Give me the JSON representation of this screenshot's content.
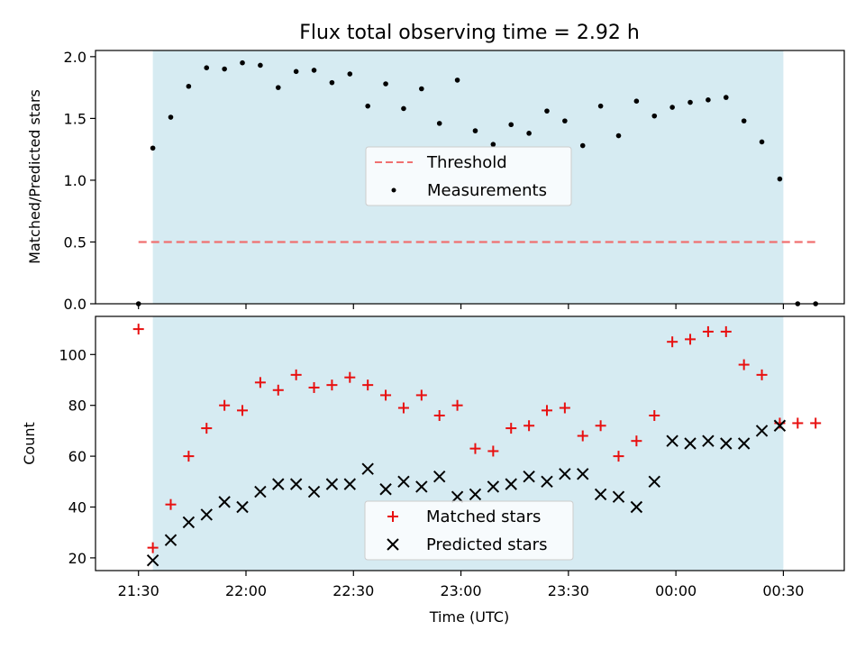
{
  "chart_data": [
    {
      "type": "scatter",
      "title": "Flux total observing time = 2.92 h",
      "xlabel": "",
      "ylabel": "Matched/Predicted stars",
      "ylim": [
        0,
        2.05
      ],
      "yticks": [
        "0.0",
        "0.5",
        "1.0",
        "1.5",
        "2.0"
      ],
      "observing_window": [
        "21:34",
        "00:30"
      ],
      "threshold": {
        "name": "Threshold",
        "value": 0.5,
        "color": "#f07070",
        "from": "21:30",
        "to": "00:39"
      },
      "series": [
        {
          "name": "Measurements",
          "marker": "dot",
          "color": "#000000",
          "x": [
            "21:30",
            "21:34",
            "21:39",
            "21:44",
            "21:49",
            "21:54",
            "21:59",
            "22:04",
            "22:09",
            "22:14",
            "22:19",
            "22:24",
            "22:29",
            "22:34",
            "22:39",
            "22:44",
            "22:49",
            "22:54",
            "22:59",
            "23:04",
            "23:09",
            "23:14",
            "23:19",
            "23:24",
            "23:29",
            "23:34",
            "23:39",
            "23:44",
            "23:49",
            "23:54",
            "23:59",
            "00:04",
            "00:09",
            "00:14",
            "00:19",
            "00:24",
            "00:29",
            "00:34",
            "00:39"
          ],
          "values": [
            0.0,
            1.26,
            1.51,
            1.76,
            1.91,
            1.9,
            1.95,
            1.93,
            1.75,
            1.88,
            1.89,
            1.79,
            1.86,
            1.6,
            1.78,
            1.58,
            1.74,
            1.46,
            1.81,
            1.4,
            1.29,
            1.45,
            1.38,
            1.56,
            1.48,
            1.28,
            1.6,
            1.36,
            1.64,
            1.52,
            1.59,
            1.63,
            1.65,
            1.67,
            1.48,
            1.31,
            1.01,
            0.0,
            0.0
          ]
        }
      ],
      "legend": "center"
    },
    {
      "type": "scatter",
      "title": "",
      "xlabel": "Time (UTC)",
      "ylabel": "Count",
      "ylim": [
        15,
        115
      ],
      "yticks": [
        "20",
        "40",
        "60",
        "80",
        "100"
      ],
      "xticks": [
        "21:30",
        "22:00",
        "22:30",
        "23:00",
        "23:30",
        "00:00",
        "00:30"
      ],
      "observing_window": [
        "21:34",
        "00:30"
      ],
      "series": [
        {
          "name": "Matched stars",
          "marker": "plus",
          "color": "#e81010",
          "x": [
            "21:30",
            "21:34",
            "21:39",
            "21:44",
            "21:49",
            "21:54",
            "21:59",
            "22:04",
            "22:09",
            "22:14",
            "22:19",
            "22:24",
            "22:29",
            "22:34",
            "22:39",
            "22:44",
            "22:49",
            "22:54",
            "22:59",
            "23:04",
            "23:09",
            "23:14",
            "23:19",
            "23:24",
            "23:29",
            "23:34",
            "23:39",
            "23:44",
            "23:49",
            "23:54",
            "23:59",
            "00:04",
            "00:09",
            "00:14",
            "00:19",
            "00:24",
            "00:29",
            "00:34",
            "00:39"
          ],
          "values": [
            110,
            24,
            41,
            60,
            71,
            80,
            78,
            89,
            86,
            92,
            87,
            88,
            91,
            88,
            84,
            79,
            84,
            76,
            80,
            63,
            62,
            71,
            72,
            78,
            79,
            68,
            72,
            60,
            66,
            76,
            105,
            106,
            109,
            109,
            96,
            92,
            73,
            73,
            73
          ]
        },
        {
          "name": "Predicted stars",
          "marker": "x",
          "color": "#000000",
          "x": [
            "21:34",
            "21:39",
            "21:44",
            "21:49",
            "21:54",
            "21:59",
            "22:04",
            "22:09",
            "22:14",
            "22:19",
            "22:24",
            "22:29",
            "22:34",
            "22:39",
            "22:44",
            "22:49",
            "22:54",
            "22:59",
            "23:04",
            "23:09",
            "23:14",
            "23:19",
            "23:24",
            "23:29",
            "23:34",
            "23:39",
            "23:44",
            "23:49",
            "23:54",
            "23:59",
            "00:04",
            "00:09",
            "00:14",
            "00:19",
            "00:24",
            "00:29"
          ],
          "values": [
            19,
            27,
            34,
            37,
            42,
            40,
            46,
            49,
            49,
            46,
            49,
            49,
            55,
            47,
            50,
            48,
            52,
            44,
            45,
            48,
            49,
            52,
            50,
            53,
            53,
            45,
            44,
            40,
            50,
            66,
            65,
            66,
            65,
            65,
            70,
            72
          ]
        }
      ],
      "legend": "lower center"
    }
  ]
}
